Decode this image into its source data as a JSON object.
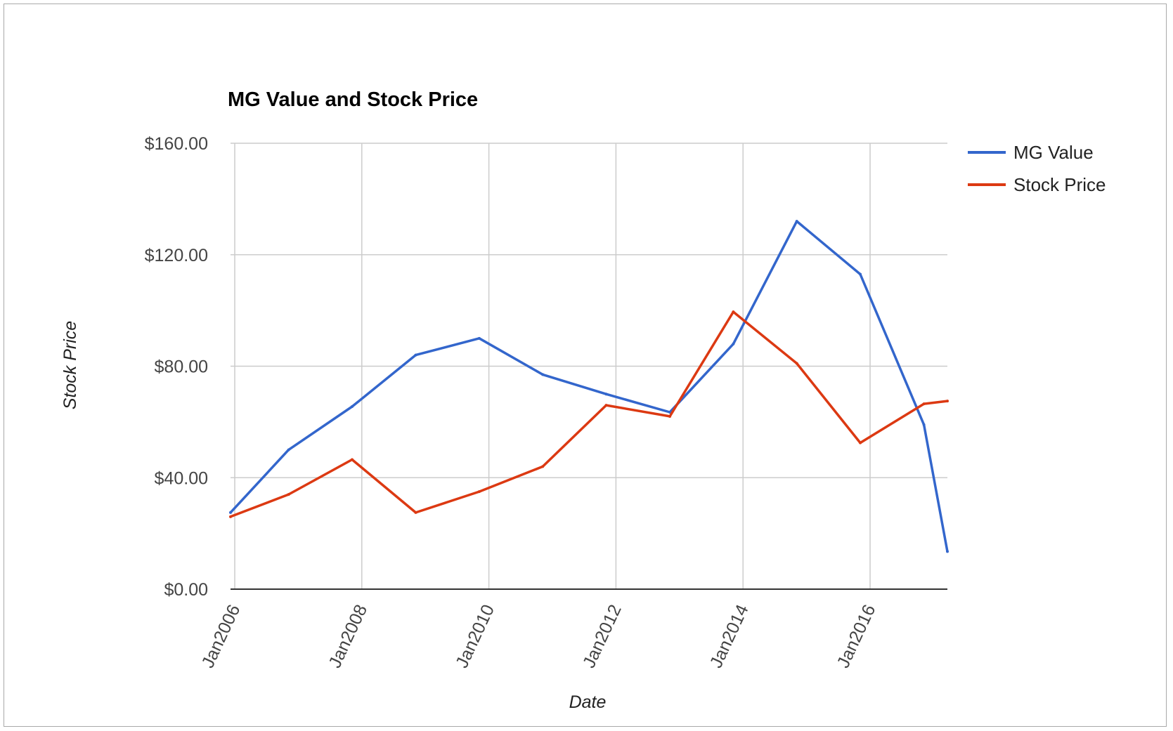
{
  "chart_data": {
    "type": "line",
    "title": "MG Value and Stock Price",
    "xlabel": "Date",
    "ylabel": "Stock Price",
    "x_ticks": [
      "Jan2006",
      "Jan2008",
      "Jan2010",
      "Jan2012",
      "Jan2014",
      "Jan2016"
    ],
    "y_ticks": [
      "$0.00",
      "$40.00",
      "$80.00",
      "$120.00",
      "$160.00"
    ],
    "ylim": [
      0,
      160
    ],
    "xlim": [
      "2006-01-01",
      "2017-04-15"
    ],
    "grid": true,
    "legend_position": "right",
    "x": [
      "2006-01-01",
      "2006-12-01",
      "2007-12-01",
      "2008-12-01",
      "2009-12-01",
      "2010-12-01",
      "2011-12-01",
      "2012-12-01",
      "2013-12-01",
      "2014-12-01",
      "2015-12-01",
      "2016-12-01",
      "2017-04-15"
    ],
    "series": [
      {
        "name": "MG Value",
        "color": "#3366cc",
        "values": [
          27.5,
          50,
          65.5,
          84,
          90,
          77,
          70,
          63.5,
          88,
          132,
          113,
          59,
          13.5
        ]
      },
      {
        "name": "Stock Price",
        "color": "#dc3912",
        "values": [
          26,
          34,
          46.5,
          27.5,
          35,
          44,
          66,
          62,
          99.5,
          81,
          52.5,
          66.5,
          67.5
        ]
      }
    ]
  }
}
